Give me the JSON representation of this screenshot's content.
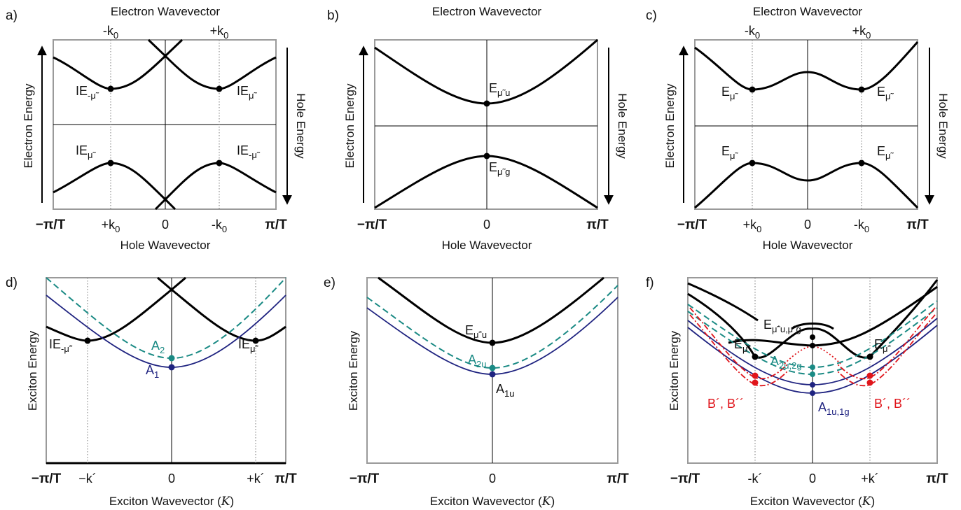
{
  "panels": {
    "a": {
      "label": "a)",
      "top_title": "Electron Wavevector",
      "top_ticks": [
        "-k₀",
        "+k₀"
      ],
      "bottom_title": "Hole Wavevector",
      "bottom_ticks": [
        "−π/T",
        "+k₀",
        "0",
        "-k₀",
        "π/T"
      ],
      "left_axis": "Electron Energy",
      "right_axis": "Hole Energy",
      "labels": [
        "IE-μ̃",
        "IEμ̃",
        "IEμ̃",
        "IE-μ̃"
      ]
    },
    "b": {
      "label": "b)",
      "top_title": "Electron Wavevector",
      "bottom_title": "Hole Wavevector",
      "bottom_ticks": [
        "−π/T",
        "0",
        "π/T"
      ],
      "left_axis": "Electron Energy",
      "right_axis": "Hole Energy",
      "labels": [
        "Eμ̃u",
        "Eμ̃g"
      ]
    },
    "c": {
      "label": "c)",
      "top_title": "Electron Wavevector",
      "top_ticks": [
        "-k₀",
        "+k₀"
      ],
      "bottom_title": "Hole Wavevector",
      "bottom_ticks": [
        "−π/T",
        "+k₀",
        "0",
        "-k₀",
        "π/T"
      ],
      "left_axis": "Electron Energy",
      "right_axis": "Hole Energy",
      "labels": [
        "Eμ̃",
        "Eμ̃",
        "Eμ̃",
        "Eμ̃"
      ]
    },
    "d": {
      "label": "d)",
      "bottom_title": "Exciton Wavevector (K)",
      "bottom_ticks": [
        "−π/T",
        "−k´",
        "0",
        "+k´",
        "π/T"
      ],
      "left_axis": "Exciton Energy",
      "labels": [
        "IE-μ̃´",
        "IEμ̃´",
        "A₂",
        "A₁"
      ]
    },
    "e": {
      "label": "e)",
      "bottom_title": "Exciton Wavevector (K)",
      "bottom_ticks": [
        "−π/T",
        "0",
        "π/T"
      ],
      "left_axis": "Exciton Energy",
      "labels": [
        "Eμ̃´u",
        "A₂u",
        "A₁u"
      ]
    },
    "f": {
      "label": "f)",
      "bottom_title": "Exciton Wavevector (K)",
      "bottom_ticks": [
        "−π/T",
        "-k´",
        "0",
        "+k´",
        "π/T"
      ],
      "left_axis": "Exciton Energy",
      "labels": [
        "Eμ̃´u,μ̃´g",
        "Eμ̃´",
        "Eμ̃´",
        "A2u,2g",
        "B´, B´´",
        "B´, B´´",
        "A1u,1g"
      ]
    }
  },
  "colors": {
    "band": "#000000",
    "navy": "#1f2380",
    "teal": "#1a8a84",
    "red": "#e0151b",
    "frame": "#9a9a9a"
  }
}
